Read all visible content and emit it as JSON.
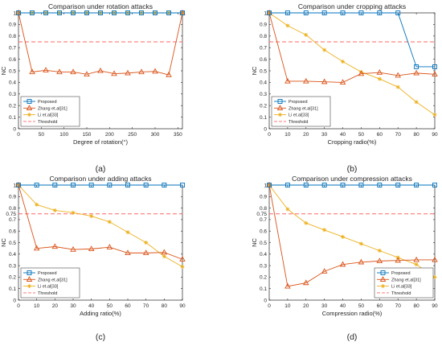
{
  "colors": {
    "proposed": "#0072BD",
    "zhang": "#D95319",
    "li": "#EDB120",
    "threshold": "#FF6666",
    "axis": "#262626",
    "grid_bg": "#ffffff"
  },
  "chart_data": [
    {
      "type": "line",
      "title": "Comparison under rotation attacks",
      "xlabel": "Degree of rotation(°)",
      "ylabel": "NC",
      "caption": "(a)",
      "xlim": [
        0,
        360
      ],
      "ylim": [
        0,
        1
      ],
      "xticks": [
        0,
        50,
        100,
        150,
        200,
        250,
        300,
        350
      ],
      "yticks": [
        0,
        0.1,
        0.2,
        0.3,
        0.4,
        0.5,
        0.6,
        0.7,
        0.8,
        0.9,
        1
      ],
      "ytick_labels": [
        "0",
        "0.1",
        "0.2",
        "0.3",
        "0.4",
        "0.5",
        "0.6",
        "0.7",
        "0.8",
        "0.9",
        "1"
      ],
      "legend_position": "left-bottom",
      "x": [
        0,
        30,
        60,
        90,
        120,
        150,
        180,
        210,
        240,
        270,
        300,
        330,
        360
      ],
      "series": [
        {
          "name": "Proposed",
          "marker": "square",
          "dash": false,
          "color_key": "proposed",
          "values": [
            1,
            1,
            1,
            1,
            1,
            1,
            1,
            1,
            1,
            1,
            1,
            1,
            1
          ]
        },
        {
          "name": "Zhang et.al[31]",
          "marker": "triangle",
          "dash": false,
          "color_key": "zhang",
          "values": [
            1,
            0.49,
            0.505,
            0.49,
            0.49,
            0.47,
            0.5,
            0.475,
            0.48,
            0.49,
            0.495,
            0.465,
            1
          ]
        },
        {
          "name": "Li et.al[33]",
          "marker": "star",
          "dash": false,
          "color_key": "li",
          "values": [
            1,
            1,
            1,
            1,
            1,
            1,
            1,
            1,
            1,
            1,
            1,
            1,
            1
          ]
        },
        {
          "name": "Threshold",
          "marker": "none",
          "dash": true,
          "color_key": "threshold",
          "values": [
            0.75,
            0.75,
            0.75,
            0.75,
            0.75,
            0.75,
            0.75,
            0.75,
            0.75,
            0.75,
            0.75,
            0.75,
            0.75
          ]
        }
      ]
    },
    {
      "type": "line",
      "title": "Comparison under cropping attacks",
      "xlabel": "Cropping radio(%)",
      "ylabel": "NC",
      "caption": "(b)",
      "xlim": [
        0,
        90
      ],
      "ylim": [
        0,
        1
      ],
      "xticks": [
        0,
        10,
        20,
        30,
        40,
        50,
        60,
        70,
        80,
        90
      ],
      "yticks": [
        0,
        0.1,
        0.2,
        0.3,
        0.4,
        0.5,
        0.6,
        0.7,
        0.8,
        0.9,
        1
      ],
      "ytick_labels": [
        "0",
        "0.1",
        "0.2",
        "0.3",
        "0.4",
        "0.5",
        "0.6",
        "0.7",
        "0.8",
        "0.9",
        "1"
      ],
      "legend_position": "left-bottom",
      "x": [
        0,
        10,
        20,
        30,
        40,
        50,
        60,
        70,
        80,
        90
      ],
      "series": [
        {
          "name": "Proposed",
          "marker": "square",
          "dash": false,
          "color_key": "proposed",
          "values": [
            1,
            1,
            1,
            1,
            1,
            1,
            1,
            1,
            0.535,
            0.535
          ]
        },
        {
          "name": "Zhang et.al[31]",
          "marker": "triangle",
          "dash": false,
          "color_key": "zhang",
          "values": [
            1,
            0.41,
            0.41,
            0.405,
            0.4,
            0.475,
            0.485,
            0.46,
            0.48,
            0.47
          ]
        },
        {
          "name": "Li et.al[33]",
          "marker": "star",
          "dash": false,
          "color_key": "li",
          "values": [
            1,
            0.89,
            0.81,
            0.68,
            0.58,
            0.49,
            0.43,
            0.36,
            0.23,
            0.12
          ]
        },
        {
          "name": "Threshold",
          "marker": "none",
          "dash": true,
          "color_key": "threshold",
          "values": [
            0.75,
            0.75,
            0.75,
            0.75,
            0.75,
            0.75,
            0.75,
            0.75,
            0.75,
            0.75
          ]
        }
      ]
    },
    {
      "type": "line",
      "title": "Comparison under adding attacks",
      "xlabel": "Adding ratio(%)",
      "ylabel": "NC",
      "caption": "(c)",
      "xlim": [
        0,
        90
      ],
      "ylim": [
        0,
        1
      ],
      "xticks": [
        0,
        10,
        20,
        30,
        40,
        50,
        60,
        70,
        80,
        90
      ],
      "yticks": [
        0,
        0.1,
        0.2,
        0.3,
        0.4,
        0.5,
        0.6,
        0.7,
        0.75,
        0.8,
        0.9,
        1
      ],
      "ytick_labels": [
        "0",
        "0.1",
        "0.2",
        "0.3",
        "0.4",
        "0.5",
        "0.6",
        "0.7",
        "0.75",
        "0.8",
        "0.9",
        "1"
      ],
      "legend_position": "left-bottom",
      "x": [
        0,
        10,
        20,
        30,
        40,
        50,
        60,
        70,
        80,
        90
      ],
      "series": [
        {
          "name": "Proposed",
          "marker": "square",
          "dash": false,
          "color_key": "proposed",
          "values": [
            1,
            1,
            1,
            1,
            1,
            1,
            1,
            1,
            1,
            1
          ]
        },
        {
          "name": "Zhang et.al[31]",
          "marker": "triangle",
          "dash": false,
          "color_key": "zhang",
          "values": [
            1,
            0.45,
            0.465,
            0.44,
            0.445,
            0.46,
            0.41,
            0.41,
            0.415,
            0.355
          ]
        },
        {
          "name": "Li et.al[33]",
          "marker": "star",
          "dash": false,
          "color_key": "li",
          "values": [
            1,
            0.83,
            0.78,
            0.76,
            0.73,
            0.68,
            0.59,
            0.5,
            0.38,
            0.29
          ]
        },
        {
          "name": "Threshold",
          "marker": "none",
          "dash": true,
          "color_key": "threshold",
          "values": [
            0.75,
            0.75,
            0.75,
            0.75,
            0.75,
            0.75,
            0.75,
            0.75,
            0.75,
            0.75
          ]
        }
      ]
    },
    {
      "type": "line",
      "title": "Comparison under compression attacks",
      "xlabel": "Compression radio(%)",
      "ylabel": "NC",
      "caption": "(d)",
      "xlim": [
        0,
        90
      ],
      "ylim": [
        0,
        1
      ],
      "xticks": [
        0,
        10,
        20,
        30,
        40,
        50,
        60,
        70,
        80,
        90
      ],
      "yticks": [
        0,
        0.1,
        0.2,
        0.3,
        0.4,
        0.5,
        0.6,
        0.7,
        0.75,
        0.8,
        0.9,
        1
      ],
      "ytick_labels": [
        "0",
        "0.1",
        "0.2",
        "0.3",
        "0.4",
        "0.5",
        "0.6",
        "0.7",
        "0.75",
        "0.8",
        "0.9",
        "1"
      ],
      "legend_position": "right-bottom",
      "x": [
        0,
        10,
        20,
        30,
        40,
        50,
        60,
        70,
        80,
        90
      ],
      "series": [
        {
          "name": "Proposed",
          "marker": "square",
          "dash": false,
          "color_key": "proposed",
          "values": [
            1,
            1,
            1,
            1,
            1,
            1,
            1,
            1,
            1,
            1
          ]
        },
        {
          "name": "Zhang et.al[31]",
          "marker": "triangle",
          "dash": false,
          "color_key": "zhang",
          "values": [
            1,
            0.12,
            0.15,
            0.25,
            0.31,
            0.33,
            0.34,
            0.345,
            0.35,
            0.35
          ]
        },
        {
          "name": "Li et.al[33]",
          "marker": "star",
          "dash": false,
          "color_key": "li",
          "values": [
            1,
            0.79,
            0.67,
            0.61,
            0.55,
            0.49,
            0.43,
            0.37,
            0.31,
            0.2
          ]
        },
        {
          "name": "Threshold",
          "marker": "none",
          "dash": true,
          "color_key": "threshold",
          "values": [
            0.75,
            0.75,
            0.75,
            0.75,
            0.75,
            0.75,
            0.75,
            0.75,
            0.75,
            0.75
          ]
        }
      ]
    }
  ]
}
